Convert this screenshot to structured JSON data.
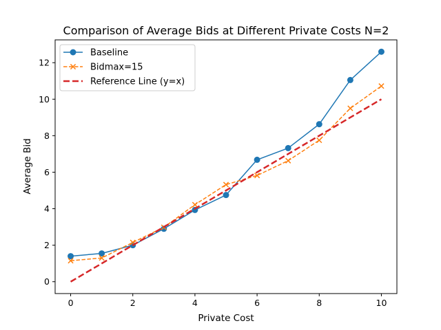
{
  "chart_data": {
    "type": "line",
    "title": "Comparison of Average Bids at Different Private Costs N=2",
    "xlabel": "Private Cost",
    "ylabel": "Average Bid",
    "xlim": [
      -0.5,
      10.5
    ],
    "ylim": [
      -0.65,
      13.25
    ],
    "xticks": [
      0,
      2,
      4,
      6,
      8,
      10
    ],
    "yticks": [
      0,
      2,
      4,
      6,
      8,
      10,
      12
    ],
    "grid": false,
    "legend_position": "top-left",
    "x": [
      0,
      1,
      2,
      3,
      4,
      5,
      6,
      7,
      8,
      9,
      10
    ],
    "series": [
      {
        "name": "Baseline",
        "values": [
          1.4,
          1.55,
          2.0,
          2.9,
          3.93,
          4.75,
          6.68,
          7.32,
          8.63,
          11.05,
          12.6
        ],
        "color": "#1f77b4",
        "line_style": "solid",
        "marker": "circle"
      },
      {
        "name": "Bidmax=15",
        "values": [
          1.15,
          1.3,
          2.15,
          2.98,
          4.22,
          5.32,
          5.82,
          6.63,
          7.75,
          9.5,
          10.72
        ],
        "color": "#ff7f0e",
        "line_style": "dashed",
        "marker": "x"
      },
      {
        "name": "Reference Line (y=x)",
        "values": [
          0,
          1,
          2,
          3,
          4,
          5,
          6,
          7,
          8,
          9,
          10
        ],
        "color": "#d62728",
        "line_style": "dashed",
        "marker": "none"
      }
    ]
  }
}
